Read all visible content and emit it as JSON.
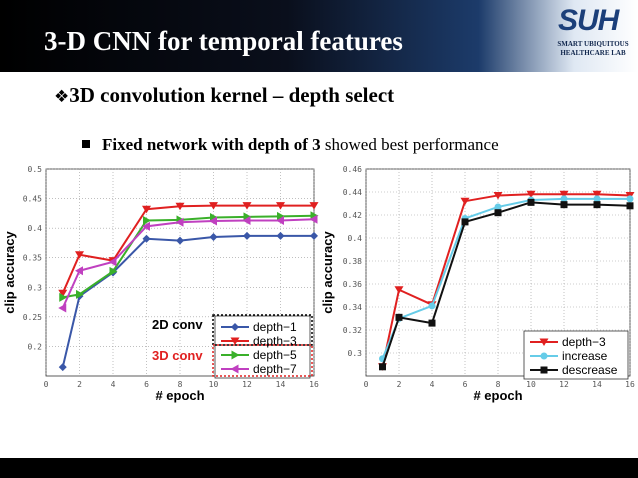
{
  "header": {
    "title": "3-D CNN for temporal features",
    "logo_text": "SUH",
    "logo_sub_lines": [
      "SMART UBIQUITOUS",
      "HEALTHCARE LAB"
    ]
  },
  "heading": {
    "marker": "❖",
    "text": "3D convolution kernel – depth select"
  },
  "bullet": {
    "bold": "Fixed network with depth of 3",
    "rest": " showed best performance"
  },
  "colors": {
    "depth1": "#3a57a8",
    "depth3": "#e02020",
    "depth5": "#3ab02a",
    "depth7": "#c040c0",
    "increase": "#66cce8",
    "decrease": "#111111",
    "ann_2d": "#000000",
    "ann_3d": "#e02020"
  },
  "chart_data": [
    {
      "type": "line",
      "xlabel": "# epoch",
      "ylabel": "clip accuracy",
      "xlim": [
        0,
        16
      ],
      "ylim": [
        0.15,
        0.5
      ],
      "xticks": [
        "0",
        "2",
        "4",
        "6",
        "8",
        "10",
        "12",
        "14",
        "16"
      ],
      "yticks": [
        "0.2",
        "0.25",
        "0.3",
        "0.35",
        "0.4",
        "0.45",
        "0.5"
      ],
      "grid": true,
      "legend_position": "bottom-right",
      "annotations": [
        "2D conv",
        "3D conv"
      ],
      "series": [
        {
          "name": "depth−1",
          "x": [
            1,
            2,
            4,
            6,
            8,
            10,
            12,
            14,
            16
          ],
          "values": [
            0.165,
            0.285,
            0.325,
            0.382,
            0.379,
            0.385,
            0.387,
            0.387,
            0.387
          ]
        },
        {
          "name": "depth−3",
          "x": [
            1,
            2,
            4,
            6,
            8,
            10,
            12,
            14,
            16
          ],
          "values": [
            0.29,
            0.355,
            0.345,
            0.432,
            0.437,
            0.438,
            0.438,
            0.438,
            0.438
          ]
        },
        {
          "name": "depth−5",
          "x": [
            1,
            2,
            4,
            6,
            8,
            10,
            12,
            14,
            16
          ],
          "values": [
            0.283,
            0.288,
            0.327,
            0.413,
            0.414,
            0.418,
            0.419,
            0.42,
            0.421
          ]
        },
        {
          "name": "depth−7",
          "x": [
            1,
            2,
            4,
            6,
            8,
            10,
            12,
            14,
            16
          ],
          "values": [
            0.265,
            0.328,
            0.343,
            0.403,
            0.41,
            0.412,
            0.413,
            0.413,
            0.415
          ]
        }
      ]
    },
    {
      "type": "line",
      "xlabel": "# epoch",
      "ylabel": "clip accuracy",
      "xlim": [
        0,
        16
      ],
      "ylim": [
        0.28,
        0.46
      ],
      "xticks": [
        "0",
        "2",
        "4",
        "6",
        "8",
        "10",
        "12",
        "14",
        "16"
      ],
      "yticks": [
        "0.3",
        "0.32",
        "0.34",
        "0.36",
        "0.38",
        "0.4",
        "0.42",
        "0.44",
        "0.46"
      ],
      "grid": true,
      "legend_position": "bottom-right",
      "series": [
        {
          "name": "depth−3",
          "x": [
            1,
            2,
            4,
            6,
            8,
            10,
            12,
            14,
            16
          ],
          "values": [
            0.288,
            0.355,
            0.342,
            0.432,
            0.437,
            0.438,
            0.438,
            0.438,
            0.437
          ]
        },
        {
          "name": "increase",
          "x": [
            1,
            2,
            4,
            6,
            8,
            10,
            12,
            14,
            16
          ],
          "values": [
            0.295,
            0.33,
            0.341,
            0.417,
            0.427,
            0.433,
            0.434,
            0.434,
            0.434
          ]
        },
        {
          "name": "descrease",
          "x": [
            1,
            2,
            4,
            6,
            8,
            10,
            12,
            14,
            16
          ],
          "values": [
            0.288,
            0.331,
            0.326,
            0.414,
            0.422,
            0.431,
            0.429,
            0.429,
            0.428
          ]
        }
      ]
    }
  ]
}
